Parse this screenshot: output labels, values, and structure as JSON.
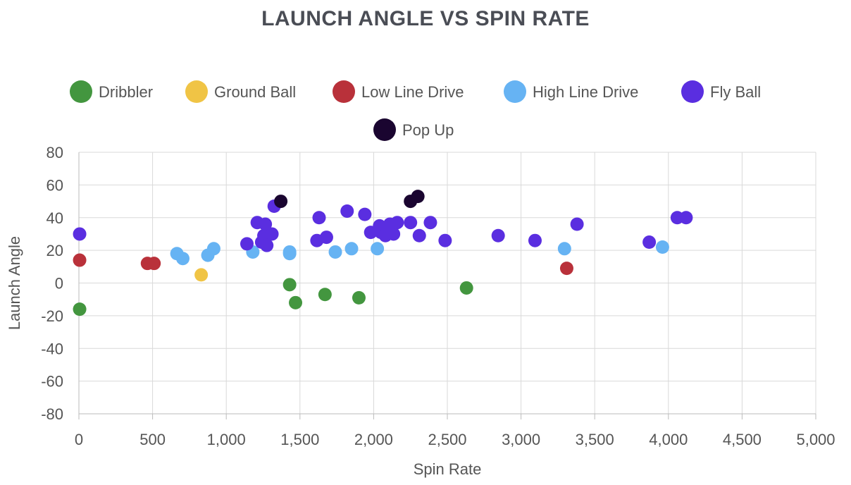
{
  "chart_data": {
    "type": "scatter",
    "title": "LAUNCH ANGLE VS SPIN RATE",
    "xlabel": "Spin Rate",
    "ylabel": "Launch Angle",
    "xlim": [
      0,
      5000
    ],
    "ylim": [
      -80,
      80
    ],
    "x_ticks": [
      0,
      500,
      1000,
      1500,
      2000,
      2500,
      3000,
      3500,
      4000,
      4500,
      5000
    ],
    "x_tick_labels": [
      "0",
      "500",
      "1,000",
      "1,500",
      "2,000",
      "2,500",
      "3,000",
      "3,500",
      "4,000",
      "4,500",
      "5,000"
    ],
    "y_ticks": [
      80,
      60,
      40,
      20,
      0,
      -20,
      -40,
      -60,
      -80
    ],
    "y_tick_labels": [
      "80",
      "60",
      "40",
      "20",
      "0",
      "-20",
      "-40",
      "-60",
      "-80"
    ],
    "grid": true,
    "legend_position": "top",
    "series": [
      {
        "name": "Dribbler",
        "color": "#43963f",
        "points": [
          [
            5,
            -16
          ],
          [
            1430,
            -1
          ],
          [
            1470,
            -12
          ],
          [
            1670,
            -7
          ],
          [
            1900,
            -9
          ],
          [
            2630,
            -3
          ]
        ]
      },
      {
        "name": "Ground Ball",
        "color": "#f0c445",
        "points": [
          [
            830,
            5
          ]
        ]
      },
      {
        "name": "Low Line Drive",
        "color": "#b9313a",
        "points": [
          [
            5,
            14
          ],
          [
            465,
            12
          ],
          [
            510,
            12
          ],
          [
            3310,
            9
          ]
        ]
      },
      {
        "name": "High Line Drive",
        "color": "#66b3f3",
        "points": [
          [
            665,
            18
          ],
          [
            705,
            15
          ],
          [
            875,
            17
          ],
          [
            915,
            21
          ],
          [
            1180,
            19
          ],
          [
            1430,
            19
          ],
          [
            1430,
            18
          ],
          [
            1740,
            19
          ],
          [
            1850,
            21
          ],
          [
            2025,
            21
          ],
          [
            3295,
            21
          ],
          [
            3960,
            22
          ]
        ]
      },
      {
        "name": "Fly Ball",
        "color": "#5a2ee0",
        "points": [
          [
            5,
            30
          ],
          [
            1140,
            24
          ],
          [
            1210,
            37
          ],
          [
            1240,
            25
          ],
          [
            1255,
            29
          ],
          [
            1265,
            36
          ],
          [
            1275,
            23
          ],
          [
            1310,
            30
          ],
          [
            1325,
            47
          ],
          [
            1615,
            26
          ],
          [
            1630,
            40
          ],
          [
            1680,
            28
          ],
          [
            1820,
            44
          ],
          [
            1940,
            42
          ],
          [
            1980,
            31
          ],
          [
            2040,
            35
          ],
          [
            2050,
            31
          ],
          [
            2080,
            29
          ],
          [
            2110,
            36
          ],
          [
            2135,
            30
          ],
          [
            2160,
            37
          ],
          [
            2250,
            37
          ],
          [
            2310,
            29
          ],
          [
            2385,
            37
          ],
          [
            2485,
            26
          ],
          [
            2845,
            29
          ],
          [
            3095,
            26
          ],
          [
            3380,
            36
          ],
          [
            3870,
            25
          ],
          [
            4060,
            40
          ],
          [
            4120,
            40
          ]
        ]
      },
      {
        "name": "Pop Up",
        "color": "#1a0530",
        "points": [
          [
            1370,
            50
          ],
          [
            2250,
            50
          ],
          [
            2300,
            53
          ]
        ]
      }
    ]
  }
}
